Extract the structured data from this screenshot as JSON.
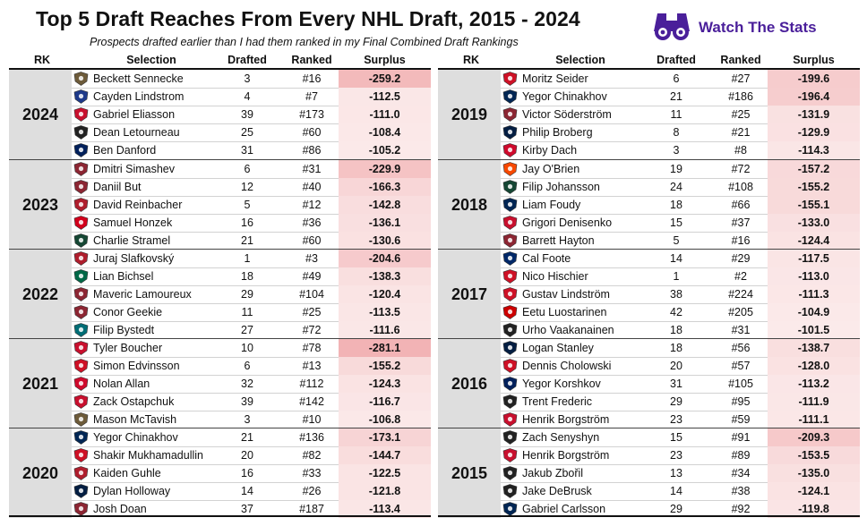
{
  "header": {
    "title": "Top 5 Draft Reaches From Every NHL Draft, 2015 - 2024",
    "subtitle": "Prospects drafted earlier than I had them ranked in my Final Combined Draft Rankings",
    "brand": "Watch The Stats",
    "brand_icon": "binoculars-icon"
  },
  "columns": {
    "rk": "RK",
    "selection": "Selection",
    "drafted": "Drafted",
    "ranked": "Ranked",
    "surplus": "Surplus"
  },
  "colors": {
    "surplus_max": "#f2b3b5",
    "surplus_min": "#fbeaea",
    "year_cell": "#dedede"
  },
  "chart_data": {
    "type": "table",
    "surplus_range": [
      -281.1,
      -101.5
    ],
    "left": [
      {
        "year": "2024",
        "rows": [
          {
            "name": "Beckett Sennecke",
            "drafted": "3",
            "ranked": "#16",
            "surplus": "-259.2",
            "team_color": "#6d5b3a"
          },
          {
            "name": "Cayden Lindstrom",
            "drafted": "4",
            "ranked": "#7",
            "surplus": "-112.5",
            "team_color": "#1e3a8a"
          },
          {
            "name": "Gabriel Eliasson",
            "drafted": "39",
            "ranked": "#173",
            "surplus": "-111.0",
            "team_color": "#c8102e"
          },
          {
            "name": "Dean Letourneau",
            "drafted": "25",
            "ranked": "#60",
            "surplus": "-108.4",
            "team_color": "#222222"
          },
          {
            "name": "Ben Danford",
            "drafted": "31",
            "ranked": "#86",
            "surplus": "-105.2",
            "team_color": "#00205b"
          }
        ]
      },
      {
        "year": "2023",
        "rows": [
          {
            "name": "Dmitri Simashev",
            "drafted": "6",
            "ranked": "#31",
            "surplus": "-229.9",
            "team_color": "#8c2633"
          },
          {
            "name": "Daniil But",
            "drafted": "12",
            "ranked": "#40",
            "surplus": "-166.3",
            "team_color": "#8c2633"
          },
          {
            "name": "David Reinbacher",
            "drafted": "5",
            "ranked": "#12",
            "surplus": "-142.8",
            "team_color": "#af1e2d"
          },
          {
            "name": "Samuel Honzek",
            "drafted": "16",
            "ranked": "#36",
            "surplus": "-136.1",
            "team_color": "#d2001c"
          },
          {
            "name": "Charlie Stramel",
            "drafted": "21",
            "ranked": "#60",
            "surplus": "-130.6",
            "team_color": "#154734"
          }
        ]
      },
      {
        "year": "2022",
        "rows": [
          {
            "name": "Juraj Slafkovský",
            "drafted": "1",
            "ranked": "#3",
            "surplus": "-204.6",
            "team_color": "#af1e2d"
          },
          {
            "name": "Lian Bichsel",
            "drafted": "18",
            "ranked": "#49",
            "surplus": "-138.3",
            "team_color": "#006847"
          },
          {
            "name": "Maveric Lamoureux",
            "drafted": "29",
            "ranked": "#104",
            "surplus": "-120.4",
            "team_color": "#8c2633"
          },
          {
            "name": "Conor Geekie",
            "drafted": "11",
            "ranked": "#25",
            "surplus": "-113.5",
            "team_color": "#8c2633"
          },
          {
            "name": "Filip Bystedt",
            "drafted": "27",
            "ranked": "#72",
            "surplus": "-111.6",
            "team_color": "#006d75"
          }
        ]
      },
      {
        "year": "2021",
        "rows": [
          {
            "name": "Tyler Boucher",
            "drafted": "10",
            "ranked": "#78",
            "surplus": "-281.1",
            "team_color": "#c8102e"
          },
          {
            "name": "Simon Edvinsson",
            "drafted": "6",
            "ranked": "#13",
            "surplus": "-155.2",
            "team_color": "#ce1126"
          },
          {
            "name": "Nolan Allan",
            "drafted": "32",
            "ranked": "#112",
            "surplus": "-124.3",
            "team_color": "#cf0a2c"
          },
          {
            "name": "Zack Ostapchuk",
            "drafted": "39",
            "ranked": "#142",
            "surplus": "-116.7",
            "team_color": "#c8102e"
          },
          {
            "name": "Mason McTavish",
            "drafted": "3",
            "ranked": "#10",
            "surplus": "-106.8",
            "team_color": "#6d5b3a"
          }
        ]
      },
      {
        "year": "2020",
        "rows": [
          {
            "name": "Yegor Chinakhov",
            "drafted": "21",
            "ranked": "#136",
            "surplus": "-173.1",
            "team_color": "#002654"
          },
          {
            "name": "Shakir Mukhamadullin",
            "drafted": "20",
            "ranked": "#82",
            "surplus": "-144.7",
            "team_color": "#ce1126"
          },
          {
            "name": "Kaiden Guhle",
            "drafted": "16",
            "ranked": "#33",
            "surplus": "-122.5",
            "team_color": "#af1e2d"
          },
          {
            "name": "Dylan Holloway",
            "drafted": "14",
            "ranked": "#26",
            "surplus": "-121.8",
            "team_color": "#041e42"
          },
          {
            "name": "Josh Doan",
            "drafted": "37",
            "ranked": "#187",
            "surplus": "-113.4",
            "team_color": "#8c2633"
          }
        ]
      }
    ],
    "right": [
      {
        "year": "2019",
        "rows": [
          {
            "name": "Moritz Seider",
            "drafted": "6",
            "ranked": "#27",
            "surplus": "-199.6",
            "team_color": "#ce1126"
          },
          {
            "name": "Yegor Chinakhov",
            "drafted": "21",
            "ranked": "#186",
            "surplus": "-196.4",
            "team_color": "#002654"
          },
          {
            "name": "Victor Söderström",
            "drafted": "11",
            "ranked": "#25",
            "surplus": "-131.9",
            "team_color": "#8c2633"
          },
          {
            "name": "Philip Broberg",
            "drafted": "8",
            "ranked": "#21",
            "surplus": "-129.9",
            "team_color": "#041e42"
          },
          {
            "name": "Kirby Dach",
            "drafted": "3",
            "ranked": "#8",
            "surplus": "-114.3",
            "team_color": "#cf0a2c"
          }
        ]
      },
      {
        "year": "2018",
        "rows": [
          {
            "name": "Jay O'Brien",
            "drafted": "19",
            "ranked": "#72",
            "surplus": "-157.2",
            "team_color": "#f74902"
          },
          {
            "name": "Filip Johansson",
            "drafted": "24",
            "ranked": "#108",
            "surplus": "-155.2",
            "team_color": "#154734"
          },
          {
            "name": "Liam Foudy",
            "drafted": "18",
            "ranked": "#66",
            "surplus": "-155.1",
            "team_color": "#002654"
          },
          {
            "name": "Grigori Denisenko",
            "drafted": "15",
            "ranked": "#37",
            "surplus": "-133.0",
            "team_color": "#c8102e"
          },
          {
            "name": "Barrett Hayton",
            "drafted": "5",
            "ranked": "#16",
            "surplus": "-124.4",
            "team_color": "#8c2633"
          }
        ]
      },
      {
        "year": "2017",
        "rows": [
          {
            "name": "Cal Foote",
            "drafted": "14",
            "ranked": "#29",
            "surplus": "-117.5",
            "team_color": "#002868"
          },
          {
            "name": "Nico Hischier",
            "drafted": "1",
            "ranked": "#2",
            "surplus": "-113.0",
            "team_color": "#ce1126"
          },
          {
            "name": "Gustav Lindström",
            "drafted": "38",
            "ranked": "#224",
            "surplus": "-111.3",
            "team_color": "#ce1126"
          },
          {
            "name": "Eetu Luostarinen",
            "drafted": "42",
            "ranked": "#205",
            "surplus": "-104.9",
            "team_color": "#cc0000"
          },
          {
            "name": "Urho Vaakanainen",
            "drafted": "18",
            "ranked": "#31",
            "surplus": "-101.5",
            "team_color": "#222222"
          }
        ]
      },
      {
        "year": "2016",
        "rows": [
          {
            "name": "Logan Stanley",
            "drafted": "18",
            "ranked": "#56",
            "surplus": "-138.7",
            "team_color": "#041e42"
          },
          {
            "name": "Dennis Cholowski",
            "drafted": "20",
            "ranked": "#57",
            "surplus": "-128.0",
            "team_color": "#ce1126"
          },
          {
            "name": "Yegor Korshkov",
            "drafted": "31",
            "ranked": "#105",
            "surplus": "-113.2",
            "team_color": "#00205b"
          },
          {
            "name": "Trent Frederic",
            "drafted": "29",
            "ranked": "#95",
            "surplus": "-111.9",
            "team_color": "#222222"
          },
          {
            "name": "Henrik Borgström",
            "drafted": "23",
            "ranked": "#59",
            "surplus": "-111.1",
            "team_color": "#c8102e"
          }
        ]
      },
      {
        "year": "2015",
        "rows": [
          {
            "name": "Zach Senyshyn",
            "drafted": "15",
            "ranked": "#91",
            "surplus": "-209.3",
            "team_color": "#222222"
          },
          {
            "name": "Henrik Borgström",
            "drafted": "23",
            "ranked": "#89",
            "surplus": "-153.5",
            "team_color": "#c8102e"
          },
          {
            "name": "Jakub Zbořil",
            "drafted": "13",
            "ranked": "#34",
            "surplus": "-135.0",
            "team_color": "#222222"
          },
          {
            "name": "Jake DeBrusk",
            "drafted": "14",
            "ranked": "#38",
            "surplus": "-124.1",
            "team_color": "#222222"
          },
          {
            "name": "Gabriel Carlsson",
            "drafted": "29",
            "ranked": "#92",
            "surplus": "-119.8",
            "team_color": "#002654"
          }
        ]
      }
    ]
  }
}
